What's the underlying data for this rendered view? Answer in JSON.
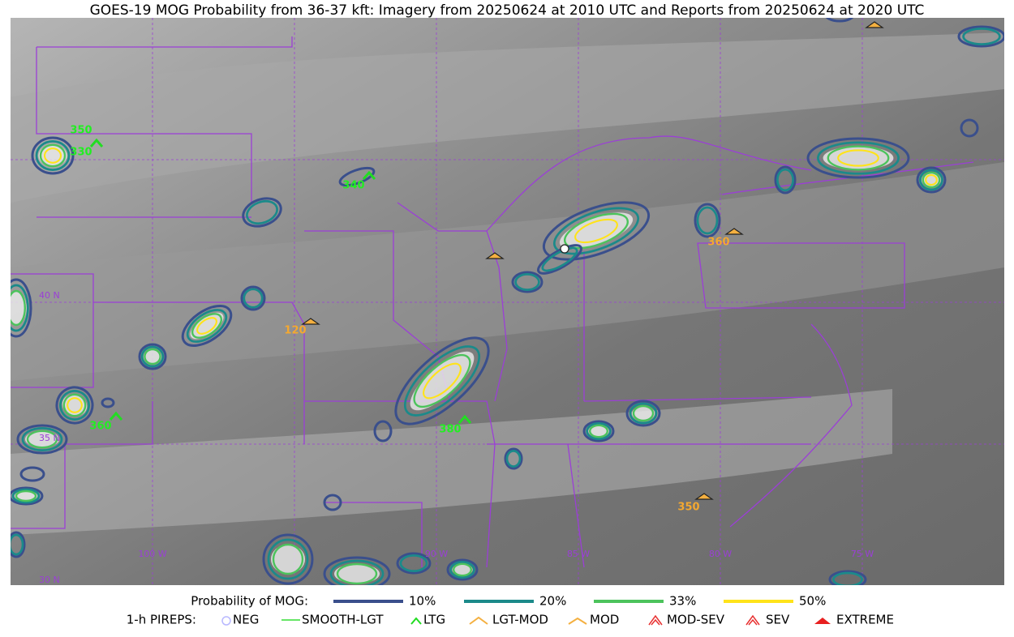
{
  "title": "GOES-19 MOG Probability from 36-37 kft: Imagery from 20250624 at 2010 UTC and Reports from 20250624 at 2020 UTC",
  "map": {
    "lat_labels": [
      "40 N",
      "35 N",
      "30 N"
    ],
    "lon_labels": [
      "100 W",
      "90 W",
      "85 W",
      "80 W",
      "75 W"
    ],
    "pireps": [
      "350",
      "330",
      "340",
      "120",
      "360",
      "380",
      "360",
      "350"
    ]
  },
  "legend": {
    "probability": {
      "title": "Probability of MOG:",
      "items": [
        "10%",
        "20%",
        "33%",
        "50%"
      ]
    },
    "pireps": {
      "title": "1-h PIREPS:",
      "items": [
        "NEG",
        "SMOOTH-LGT",
        "LTG",
        "LGT-MOD",
        "MOD",
        "MOD-SEV",
        "SEV",
        "EXTREME"
      ]
    }
  }
}
